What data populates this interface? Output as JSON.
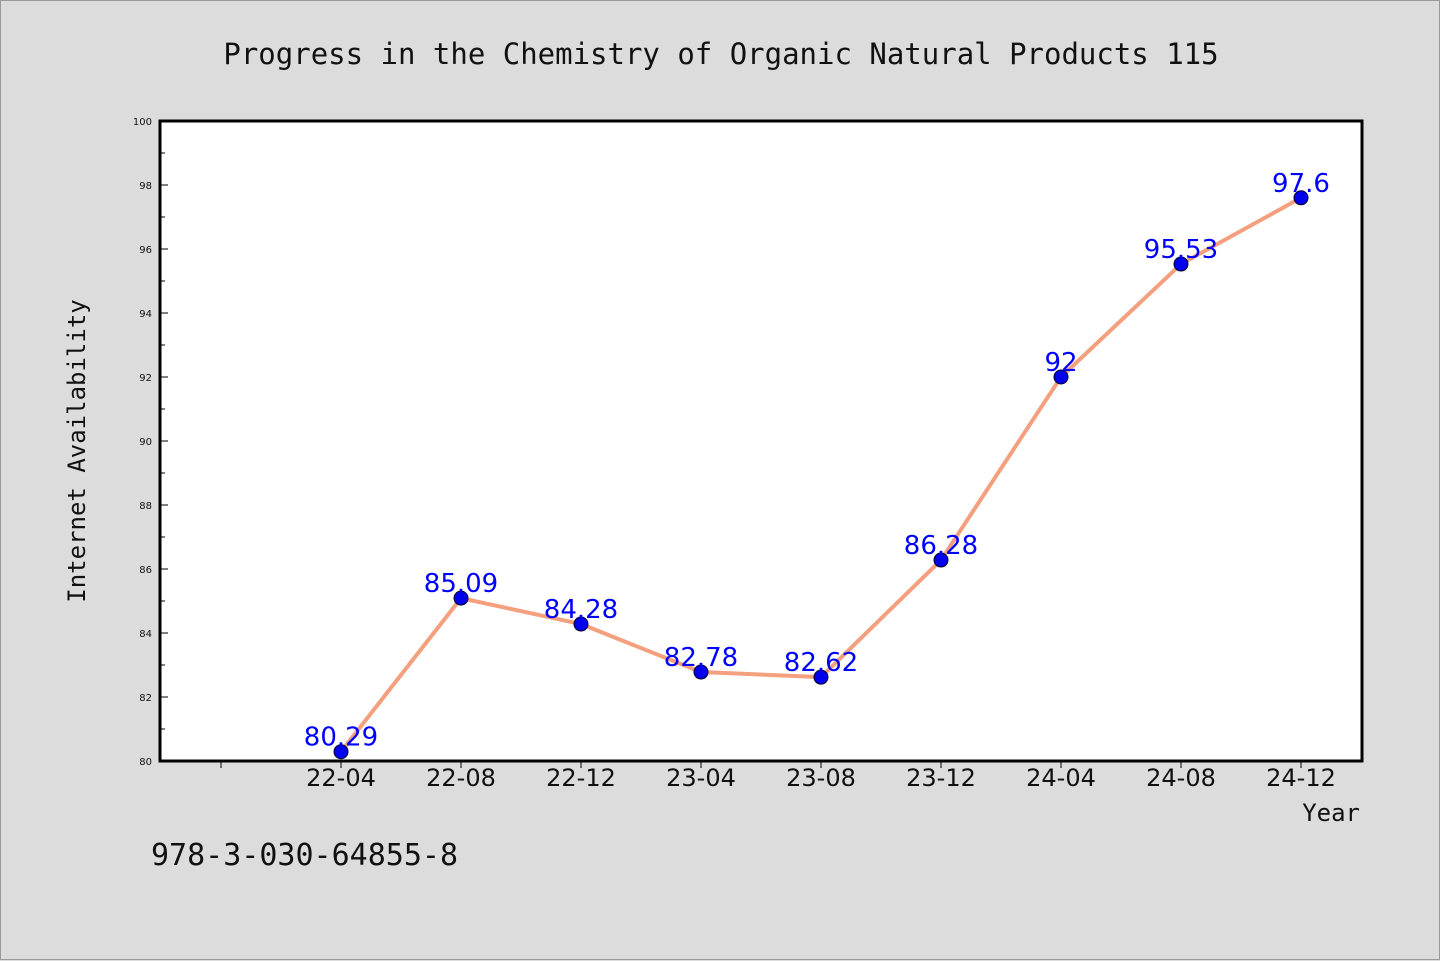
{
  "chart_data": {
    "type": "line",
    "title": "Progress in the Chemistry of Organic Natural Products 115",
    "xlabel": "Year",
    "ylabel": "Internet Availability",
    "categories": [
      "22-04",
      "22-08",
      "22-12",
      "23-04",
      "23-08",
      "23-12",
      "24-04",
      "24-08",
      "24-12"
    ],
    "series": [
      {
        "values": [
          80.29,
          85.09,
          84.28,
          82.78,
          82.62,
          86.28,
          92,
          95.53,
          97.6
        ],
        "labels": [
          "80.29",
          "85.09",
          "84.28",
          "82.78",
          "82.62",
          "86.28",
          "92",
          "95.53",
          "97.6"
        ],
        "line_color": "#f4a07e",
        "marker_color": "#0000ee"
      }
    ],
    "ylim": [
      80,
      100
    ],
    "yticks": [
      "80",
      "82",
      "84",
      "86",
      "88",
      "90",
      "92",
      "94",
      "96",
      "98",
      "100"
    ],
    "grid": false,
    "legend": "none"
  },
  "annotation": "978-3-030-64855-8"
}
